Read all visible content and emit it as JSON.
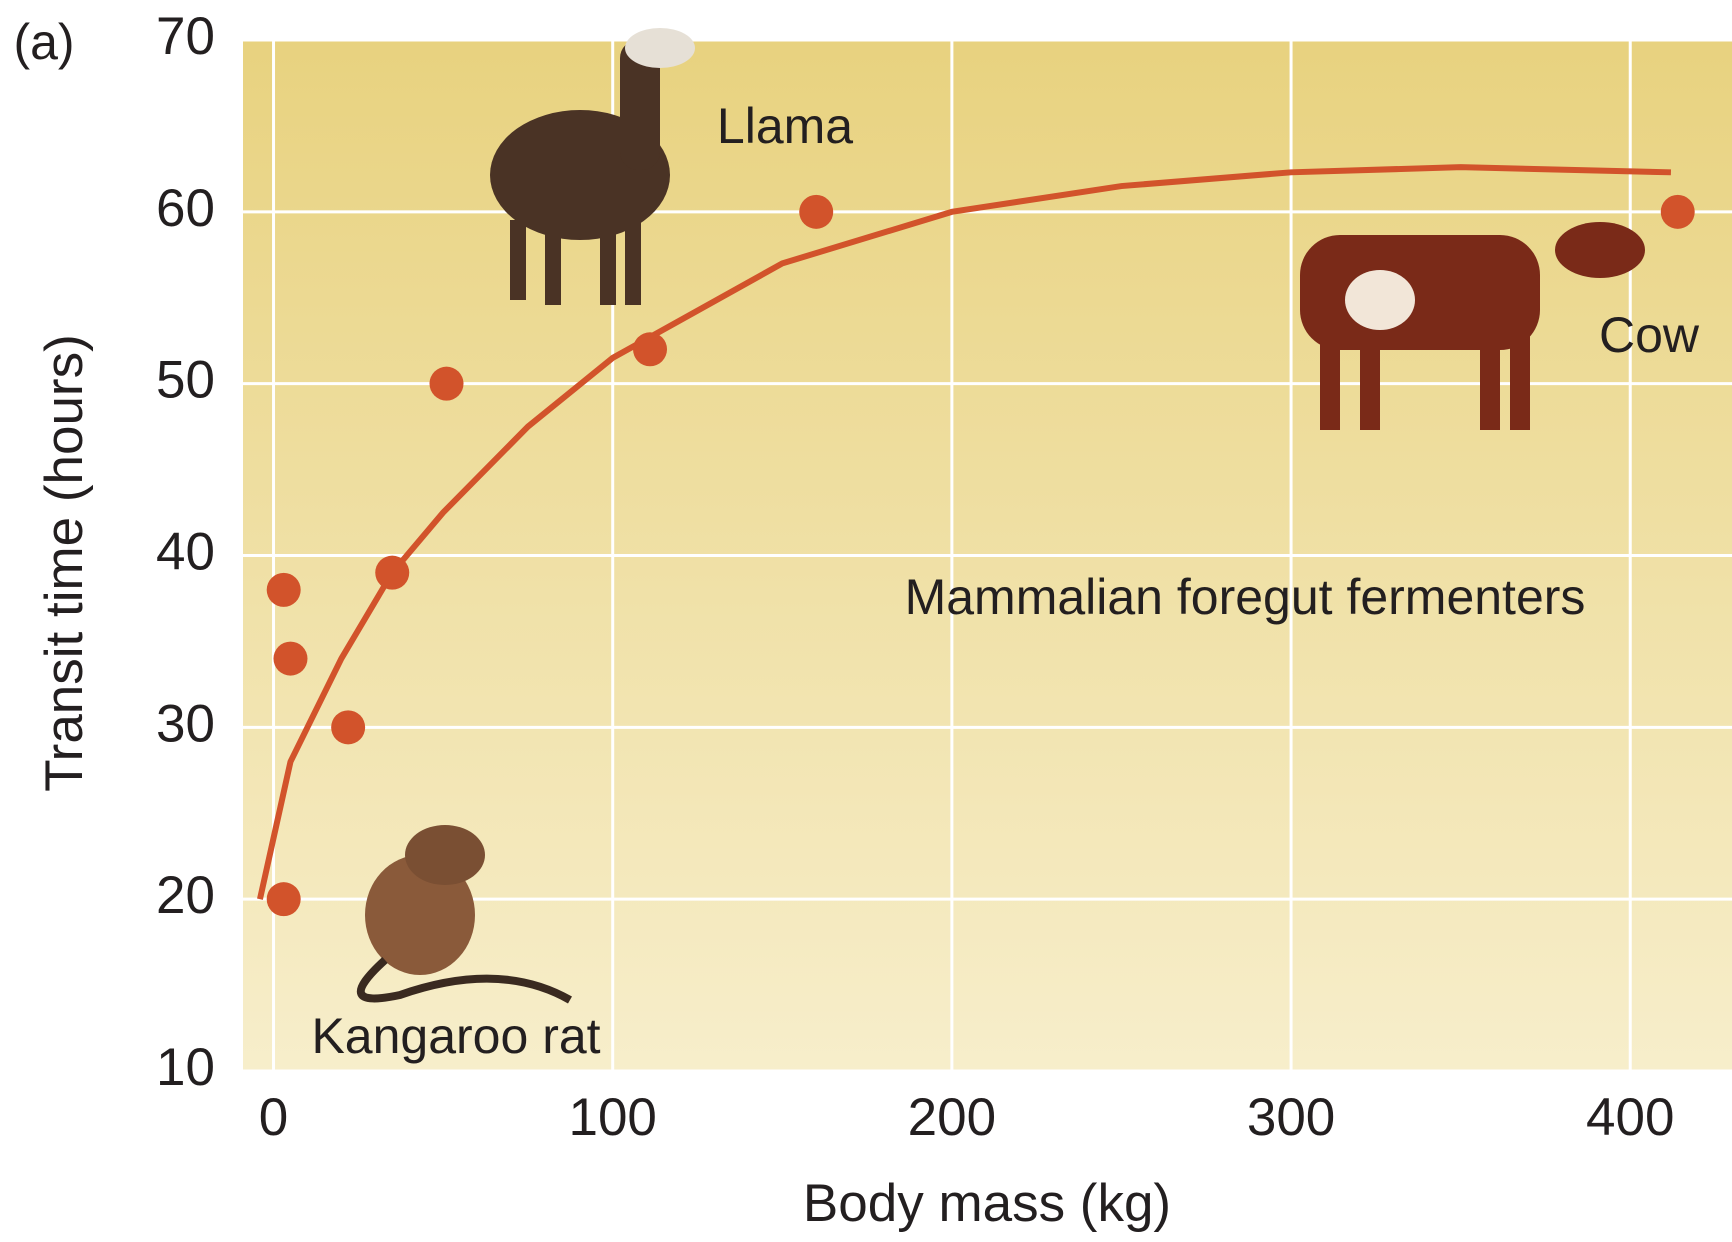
{
  "chart_data": {
    "type": "scatter",
    "panel_label": "(a)",
    "xlabel": "Body mass (kg)",
    "ylabel": "Transit time (hours)",
    "xlim": [
      -9,
      430
    ],
    "ylim": [
      10,
      70
    ],
    "xticks": [
      0,
      100,
      200,
      300,
      400
    ],
    "yticks": [
      10,
      20,
      30,
      40,
      50,
      60,
      70
    ],
    "grid": true,
    "color": "#d2532b",
    "points": {
      "x": [
        3,
        5,
        3,
        22,
        35,
        51,
        111,
        160,
        414
      ],
      "y": [
        38,
        34,
        20,
        30,
        39,
        50,
        52,
        60,
        60
      ]
    },
    "curve": {
      "x": [
        -4,
        5,
        20,
        35,
        50,
        75,
        100,
        150,
        200,
        250,
        300,
        350,
        412
      ],
      "y": [
        20,
        28,
        34,
        39,
        42.5,
        47.5,
        51.5,
        57,
        60,
        61.5,
        62.3,
        62.6,
        62.3
      ]
    },
    "annotations": [
      "Llama",
      "Cow",
      "Kangaroo rat",
      "Mammalian foregut fermenters"
    ]
  }
}
